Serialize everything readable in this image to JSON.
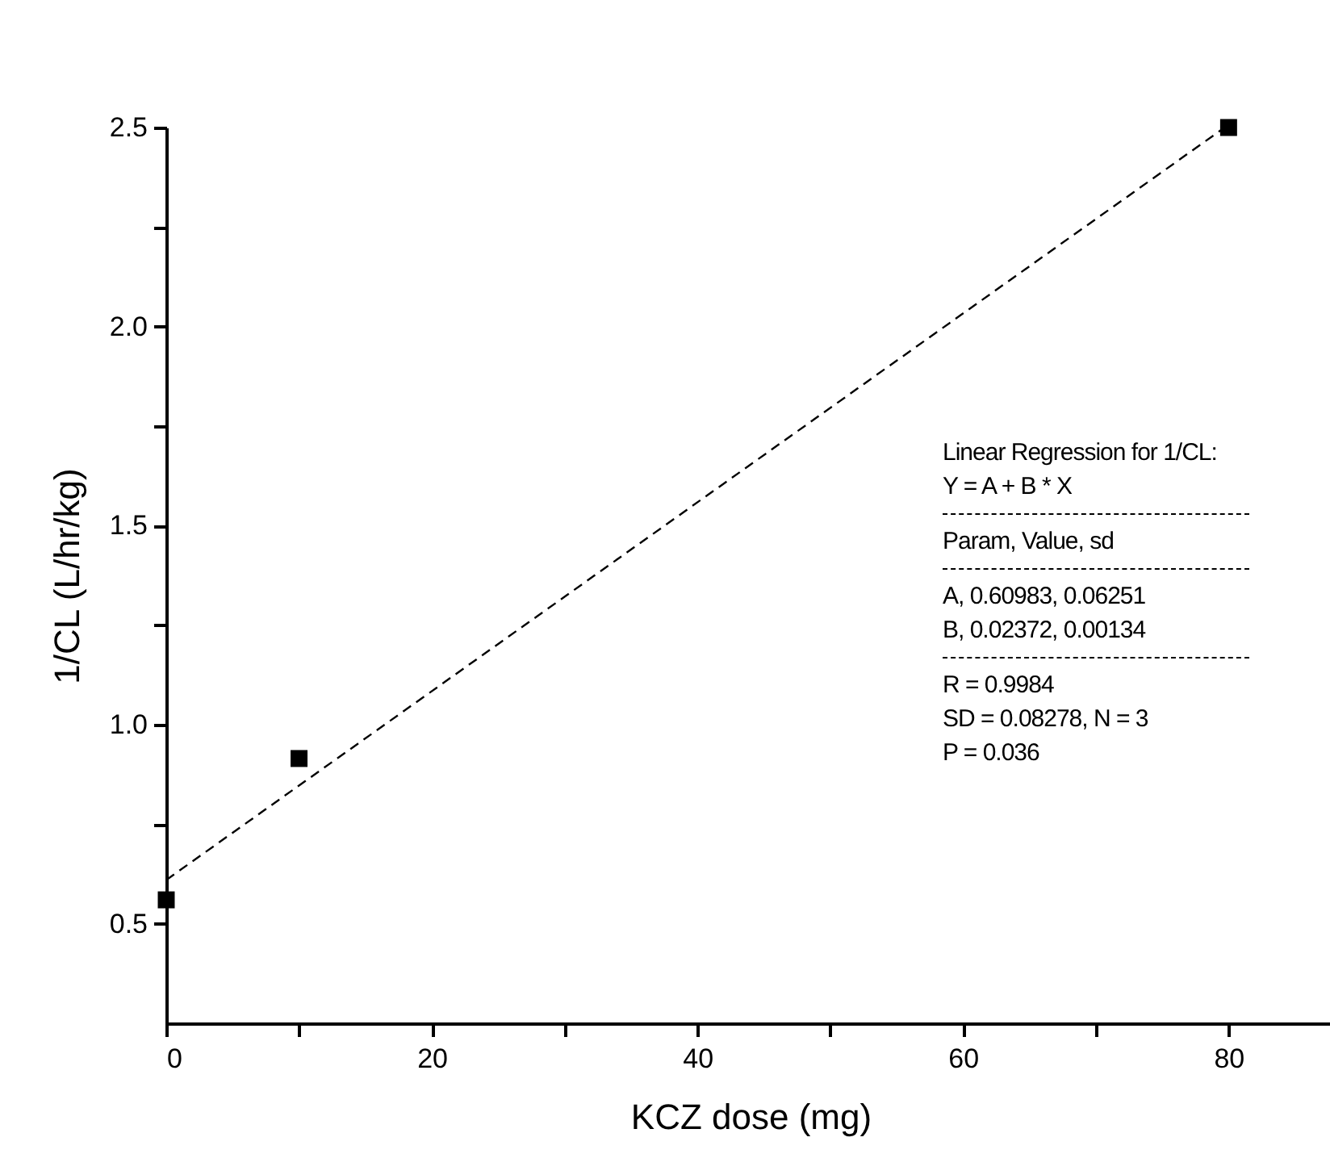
{
  "chart_data": {
    "type": "scatter",
    "xlabel": "KCZ dose (mg)",
    "ylabel": "1/CL (L/hr/kg)",
    "series": [
      {
        "color": "#000000",
        "marker": "square",
        "x": [
          0,
          10,
          80
        ],
        "values": [
          0.56,
          0.915,
          2.5
        ]
      },
      {
        "type": "line",
        "color": "#000000",
        "line_style": "dashed",
        "marker": "none",
        "x": [
          0,
          79.7
        ],
        "values": [
          0.61,
          2.5
        ]
      }
    ],
    "xlim": [
      0,
      88
    ],
    "xticks": [
      0,
      {
        "value": 10,
        "label": null
      },
      20,
      {
        "value": 30,
        "label": null
      },
      40,
      {
        "value": 50,
        "label": null
      },
      60,
      {
        "value": 70,
        "label": null
      },
      80
    ],
    "ylim": [
      0.25,
      2.5
    ],
    "yticks": [
      0.5,
      {
        "value": 0.75,
        "label": null
      },
      {
        "value": 1,
        "label": "1.0"
      },
      {
        "value": 1.25,
        "label": null
      },
      1.5,
      {
        "value": 1.75,
        "label": null
      },
      {
        "value": 2,
        "label": "2.0"
      },
      {
        "value": 2.25,
        "label": null
      },
      2.5
    ],
    "grid": false,
    "annotations": [
      "Linear Regression for 1/CL:",
      "Y = A + B * X",
      "Param, Value, sd",
      "A, 0.60983, 0.06251",
      "B, 0.02372, 0.00134",
      "R  = 0.9984",
      "SD = 0.08278, N = 3",
      "P = 0.036"
    ]
  }
}
